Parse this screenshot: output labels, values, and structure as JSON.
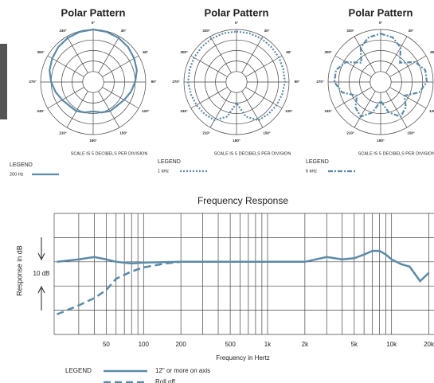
{
  "chart_data": [
    {
      "type": "polar",
      "title": "Polar Pattern",
      "annotation": "SCALE IS 5 DECIBELS PER DIVISION",
      "legend_title": "LEGEND",
      "rlim": [
        -25,
        0
      ],
      "rgrid": [
        -20,
        -15,
        -10,
        -5,
        0
      ],
      "thetaticks": [
        {
          "value": 0,
          "label": "0°"
        },
        {
          "value": 30,
          "label": "30°"
        },
        {
          "value": 60,
          "label": "60°"
        },
        {
          "value": 90,
          "label": "90°"
        },
        {
          "value": 120,
          "label": "120°"
        },
        {
          "value": 150,
          "label": "150°"
        },
        {
          "value": 180,
          "label": "180°"
        },
        {
          "value": 210,
          "label": "210°"
        },
        {
          "value": 240,
          "label": "240°"
        },
        {
          "value": 270,
          "label": "270°"
        },
        {
          "value": 300,
          "label": "300°"
        },
        {
          "value": 330,
          "label": "330°"
        }
      ],
      "theta": [
        0,
        15,
        30,
        45,
        60,
        75,
        90,
        105,
        120,
        135,
        150,
        165,
        180,
        195,
        210,
        225,
        240,
        255,
        270,
        285,
        300,
        315,
        330,
        345
      ],
      "series": [
        {
          "name": "200 Hz",
          "color": "#5b8aa8",
          "style": "solid",
          "values": [
            0,
            -0.3,
            -0.8,
            -1.5,
            -2.5,
            -3.5,
            -5,
            -6.5,
            -8,
            -9,
            -9,
            -10,
            -11,
            -10,
            -9,
            -9,
            -8,
            -6.5,
            -5,
            -3.5,
            -2.5,
            -1.5,
            -0.8,
            -0.3
          ]
        }
      ]
    },
    {
      "type": "polar",
      "title": "Polar Pattern",
      "annotation": "SCALE IS 5 DECIBELS PER DIVISION",
      "legend_title": "LEGEND",
      "rlim": [
        -25,
        0
      ],
      "rgrid": [
        -20,
        -15,
        -10,
        -5,
        0
      ],
      "thetaticks": [
        {
          "value": 0,
          "label": "0°"
        },
        {
          "value": 30,
          "label": "30°"
        },
        {
          "value": 60,
          "label": "60°"
        },
        {
          "value": 90,
          "label": "90°"
        },
        {
          "value": 120,
          "label": "120°"
        },
        {
          "value": 150,
          "label": "150°"
        },
        {
          "value": 180,
          "label": "180°"
        },
        {
          "value": 210,
          "label": "210°"
        },
        {
          "value": 240,
          "label": "240°"
        },
        {
          "value": 270,
          "label": "270°"
        },
        {
          "value": 300,
          "label": "300°"
        },
        {
          "value": 330,
          "label": "330°"
        }
      ],
      "theta": [
        0,
        15,
        30,
        45,
        60,
        75,
        90,
        105,
        120,
        135,
        150,
        165,
        180,
        195,
        210,
        225,
        240,
        255,
        270,
        285,
        300,
        315,
        330,
        345
      ],
      "series": [
        {
          "name": "1 kHz",
          "color": "#5b8aa8",
          "style": "dotted",
          "values": [
            -1,
            -1,
            -1.2,
            -1.5,
            -1.7,
            -1.9,
            -2,
            -2.5,
            -3,
            -3.5,
            -4,
            -8,
            -15,
            -8,
            -4,
            -3.5,
            -3,
            -2.5,
            -2,
            -1.9,
            -1.7,
            -1.5,
            -1.2,
            -1
          ]
        }
      ]
    },
    {
      "type": "polar",
      "title": "Polar Pattern",
      "annotation": "SCALE IS 5 DECIBELS PER DIVISION",
      "legend_title": "LEGEND",
      "rlim": [
        -25,
        0
      ],
      "rgrid": [
        -20,
        -15,
        -10,
        -5,
        0
      ],
      "thetaticks": [
        {
          "value": 0,
          "label": "0°"
        },
        {
          "value": 30,
          "label": "30°"
        },
        {
          "value": 60,
          "label": "60°"
        },
        {
          "value": 90,
          "label": "90°"
        },
        {
          "value": 120,
          "label": "120°"
        },
        {
          "value": 150,
          "label": "150°"
        },
        {
          "value": 180,
          "label": "180°"
        },
        {
          "value": 210,
          "label": "210°"
        },
        {
          "value": 240,
          "label": "240°"
        },
        {
          "value": 270,
          "label": "270°"
        },
        {
          "value": 300,
          "label": "300°"
        },
        {
          "value": 330,
          "label": "330°"
        }
      ],
      "theta": [
        0,
        15,
        30,
        45,
        60,
        75,
        90,
        105,
        120,
        135,
        150,
        165,
        180,
        195,
        210,
        225,
        240,
        255,
        270,
        285,
        300,
        315,
        330,
        345
      ],
      "series": [
        {
          "name": "6 kHz",
          "color": "#5b8aa8",
          "style": "dashdot",
          "values": [
            -2,
            -3,
            -6,
            -12,
            -6,
            -3,
            -3,
            -6,
            -12,
            -8,
            -6,
            -10,
            -16,
            -10,
            -6,
            -8,
            -12,
            -6,
            -3,
            -3,
            -6,
            -12,
            -6,
            -3
          ]
        }
      ]
    },
    {
      "type": "line",
      "title": "Frequency Response",
      "xlabel": "Frequency in Hertz",
      "ylabel": "Response in dB",
      "annotation": "10 dB",
      "legend_title": "LEGEND",
      "xscale": "log",
      "xlim": [
        19,
        22000
      ],
      "xticks": [
        50,
        100,
        200,
        500,
        {
          "value": 1000,
          "label": "1k"
        },
        {
          "value": 2000,
          "label": "2k"
        },
        {
          "value": 5000,
          "label": "5k"
        },
        {
          "value": 10000,
          "label": "10k"
        },
        {
          "value": 20000,
          "label": "20k"
        }
      ],
      "xgrid": [
        30,
        40,
        60,
        70,
        80,
        90,
        300,
        400,
        600,
        700,
        800,
        900,
        3000,
        4000,
        6000,
        7000,
        8000,
        9000
      ],
      "ylim": [
        -30,
        20
      ],
      "ygrid": [
        -20,
        -10,
        0,
        10
      ],
      "series": [
        {
          "name": "12\" or more on axis",
          "color": "#5b8aa8",
          "style": "solid",
          "x": [
            20,
            30,
            40,
            50,
            60,
            80,
            100,
            200,
            500,
            1000,
            2000,
            3000,
            4000,
            5000,
            6000,
            7000,
            8000,
            9000,
            10000,
            12000,
            14000,
            17000,
            20000
          ],
          "values": [
            0,
            1,
            2,
            1,
            0,
            -0.7,
            -0.3,
            0,
            0,
            0,
            0,
            2,
            1,
            1.5,
            3,
            4.5,
            4.5,
            3,
            1,
            -1,
            -2,
            -8,
            -4.5
          ]
        },
        {
          "name": "Roll off",
          "color": "#5b8aa8",
          "style": "dashed",
          "x": [
            20,
            30,
            40,
            50,
            60,
            80,
            100,
            150,
            200,
            250
          ],
          "values": [
            -21.7,
            -18,
            -15,
            -11.7,
            -7,
            -4,
            -2.3,
            -0.7,
            0,
            0
          ]
        }
      ]
    }
  ]
}
